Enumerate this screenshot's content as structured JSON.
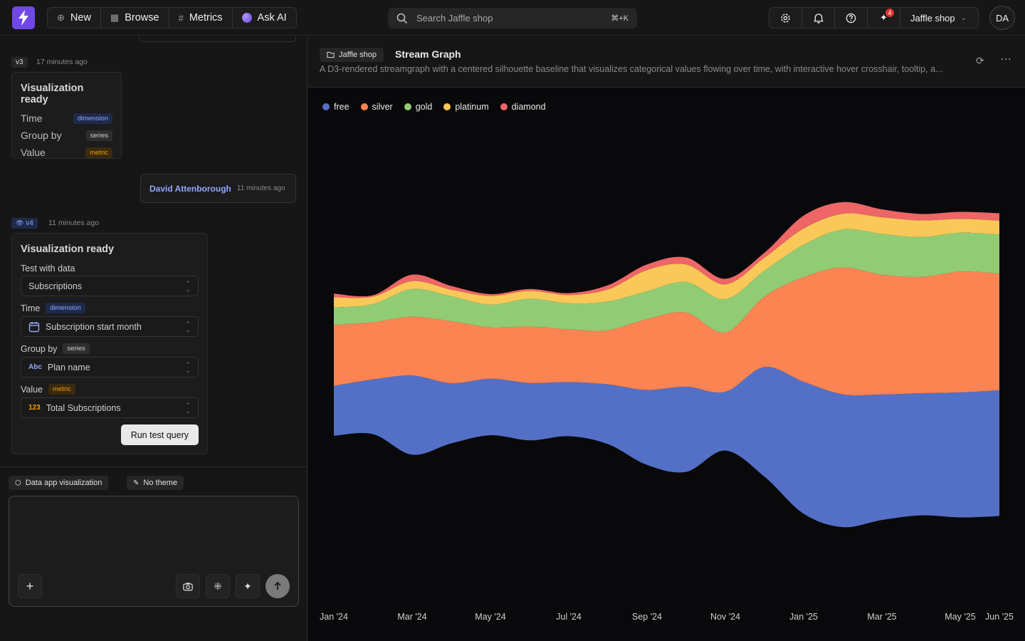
{
  "nav": {
    "new_label": "New",
    "browse_label": "Browse",
    "metrics_label": "Metrics",
    "ask_ai_label": "Ask AI",
    "search_placeholder": "Search Jaffle shop",
    "search_shortcut": "⌘+K",
    "notification_count": "4",
    "org_name": "Jaffle shop",
    "avatar_initials": "DA"
  },
  "conversation": {
    "v3": {
      "tag": "v3",
      "time": "17 minutes ago",
      "title": "Visualization ready",
      "rows": [
        {
          "label": "Time",
          "kind": "dimension"
        },
        {
          "label": "Group by",
          "kind": "series"
        },
        {
          "label": "Value",
          "kind": "metric"
        }
      ]
    },
    "user_message": {
      "name": "David Attenborough",
      "time": "11 minutes ago"
    },
    "v4": {
      "tag": "v4",
      "time": "11 minutes ago",
      "title": "Visualization ready",
      "test_label": "Test with data",
      "test_value": "Subscriptions",
      "time_label": "Time",
      "time_kind": "dimension",
      "time_value": "Subscription start month",
      "group_label": "Group by",
      "group_kind": "series",
      "group_value": "Plan name",
      "value_label": "Value",
      "value_kind": "metric",
      "value_value": "Total Subscriptions",
      "string_icon": "Abc",
      "number_icon": "123",
      "run_label": "Run test query"
    }
  },
  "composer": {
    "chip_app": "Data app visualization",
    "chip_theme": "No theme"
  },
  "panel": {
    "breadcrumb": "Jaffle shop",
    "title": "Stream Graph",
    "description": "A D3-rendered streamgraph with a centered silhouette baseline that visualizes categorical values flowing over time, with interactive hover crosshair, tooltip, a..."
  },
  "colors": {
    "free": "#5470c6",
    "silver": "#fc8452",
    "gold": "#91cc75",
    "platinum": "#fac858",
    "diamond": "#ee6666"
  },
  "chart_data": {
    "type": "area",
    "layout": "streamgraph-silhouette",
    "x": [
      "2024-01",
      "2024-02",
      "2024-03",
      "2024-04",
      "2024-05",
      "2024-06",
      "2024-07",
      "2024-08",
      "2024-09",
      "2024-10",
      "2024-11",
      "2024-12",
      "2025-01",
      "2025-02",
      "2025-03",
      "2025-04",
      "2025-05",
      "2025-06"
    ],
    "x_tick_labels": [
      "Jan '24",
      "Mar '24",
      "May '24",
      "Jul '24",
      "Sep '24",
      "Nov '24",
      "Jan '25",
      "Mar '25",
      "May '25",
      "Jun '25"
    ],
    "legend_position": "top-left",
    "series": [
      {
        "name": "free",
        "values": [
          108,
          118,
          171,
          130,
          122,
          124,
          117,
          129,
          162,
          184,
          127,
          237,
          285,
          287,
          271,
          264,
          270,
          272
        ]
      },
      {
        "name": "silver",
        "values": [
          131,
          124,
          127,
          134,
          111,
          122,
          114,
          117,
          153,
          160,
          128,
          152,
          226,
          274,
          259,
          251,
          261,
          252
        ]
      },
      {
        "name": "gold",
        "values": [
          38,
          39,
          60,
          54,
          49,
          60,
          56,
          62,
          60,
          66,
          72,
          56,
          70,
          82,
          88,
          86,
          84,
          84
        ]
      },
      {
        "name": "platinum",
        "values": [
          22,
          16,
          17,
          14,
          19,
          17,
          18,
          26,
          46,
          38,
          32,
          28,
          35,
          34,
          36,
          36,
          30,
          30
        ]
      },
      {
        "name": "diamond",
        "values": [
          8,
          3,
          14,
          8,
          4,
          4,
          4,
          9,
          12,
          15,
          12,
          11,
          28,
          25,
          17,
          14,
          15,
          16
        ]
      }
    ]
  }
}
